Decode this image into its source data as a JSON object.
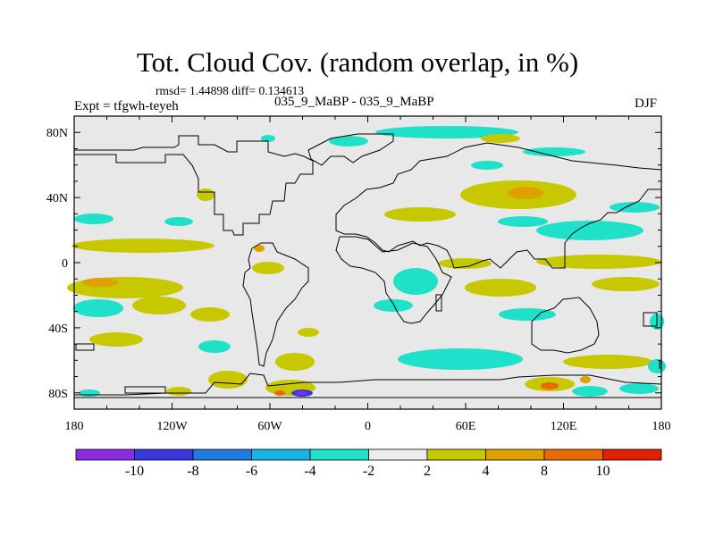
{
  "header": {
    "title": "Tot. Cloud Cov. (random overlap, in %)",
    "stats": "rmsd= 1.44898 diff= 0.134613",
    "experiment": "Expt = tfgwh-teyeh",
    "comparison": "035_9_MaBP - 035_9_MaBP",
    "season": "DJF"
  },
  "map": {
    "background_color": "#e8e8e8",
    "lon_ticks": [
      "180",
      "120W",
      "60W",
      "0",
      "60E",
      "120E",
      "180"
    ],
    "lat_ticks": [
      "80N",
      "40N",
      "0",
      "40S",
      "80S"
    ]
  },
  "colorbar": {
    "colors": [
      "#8a2be2",
      "#3a36e0",
      "#1f7be0",
      "#16b4e6",
      "#1fe0c8",
      "#ececec",
      "#c8c800",
      "#e0a000",
      "#e86a00",
      "#e02000"
    ],
    "labels": [
      "-10",
      "-8",
      "-6",
      "-4",
      "-2",
      "2",
      "4",
      "8",
      "10"
    ]
  }
}
